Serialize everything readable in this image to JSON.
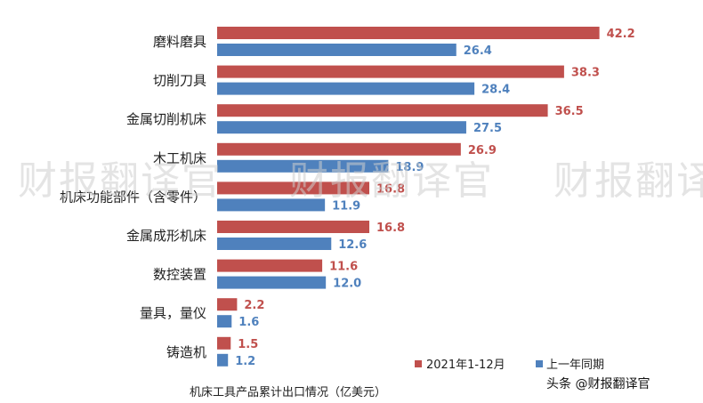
{
  "chart_data": {
    "type": "bar",
    "orientation": "horizontal",
    "categories": [
      "磨料磨具",
      "切削刀具",
      "金属切削机床",
      "木工机床",
      "机床功能部件（含零件）",
      "金属成形机床",
      "数控装置",
      "量具，量仪",
      "铸造机"
    ],
    "series": [
      {
        "name": "2021年1-12月",
        "values": [
          42.2,
          38.3,
          36.5,
          26.9,
          16.8,
          16.8,
          11.6,
          2.2,
          1.5
        ],
        "color": "#c0504d"
      },
      {
        "name": "上一年同期",
        "values": [
          26.4,
          28.4,
          27.5,
          18.9,
          11.9,
          12.6,
          12.0,
          1.6,
          1.2
        ],
        "color": "#4f81bd"
      }
    ],
    "value_labels": [
      [
        "42.2",
        "38.3",
        "36.5",
        "26.9",
        "16.8",
        "16.8",
        "11.6",
        "2.2",
        "1.5"
      ],
      [
        "26.4",
        "28.4",
        "27.5",
        "18.9",
        "11.9",
        "12.6",
        "12.0",
        "1.6",
        "1.2"
      ]
    ],
    "xlim": [
      0,
      45
    ],
    "title": "",
    "xlabel": "机床工具产品累计出口情况（亿美元）",
    "legend_position": "bottom-right",
    "grid": false
  },
  "watermark": {
    "text": "财报翻译官",
    "repeat_text": "财报翻译"
  },
  "credit": {
    "text": "头条 @财报翻译官"
  }
}
